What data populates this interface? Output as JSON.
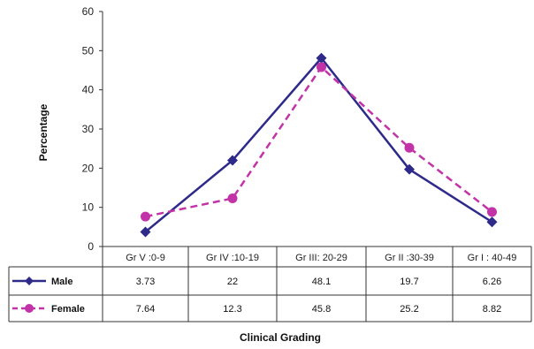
{
  "chart_data": {
    "type": "line",
    "categories": [
      "Gr V :0-9",
      "Gr IV :10-19",
      "Gr III: 20-29",
      "Gr II :30-39",
      "Gr I : 40-49"
    ],
    "series": [
      {
        "name": "Male",
        "values": [
          3.73,
          22,
          48.1,
          19.7,
          6.26
        ],
        "value_labels": [
          "3.73",
          "22",
          "48.1",
          "19.7",
          "6.26"
        ],
        "color": "#2e2a8a",
        "style": "solid",
        "marker": "diamond"
      },
      {
        "name": "Female",
        "values": [
          7.64,
          12.3,
          45.8,
          25.2,
          8.82
        ],
        "value_labels": [
          "7.64",
          "12.3",
          "45.8",
          "25.2",
          "8.82"
        ],
        "color": "#c233a8",
        "style": "dashed",
        "marker": "circle"
      }
    ],
    "title": "",
    "xlabel": "Clinical Grading",
    "ylabel": "Percentage",
    "ylim": [
      0,
      60
    ],
    "yticks": [
      0,
      10,
      20,
      30,
      40,
      50,
      60
    ],
    "legend": "data table below plot",
    "grid": false
  }
}
